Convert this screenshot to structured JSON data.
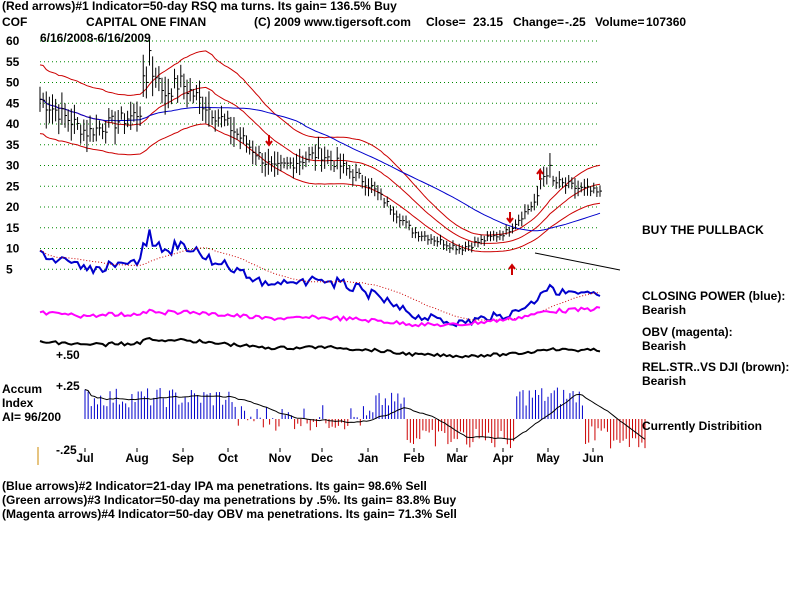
{
  "header": {
    "line1": "(Red arrows)#1 Indicator=50-day RSQ ma turns. Its gain= 136.5% Buy",
    "ticker": "COF",
    "company": "CAPITAL ONE FINAN",
    "copyright": "(C) 2009 www.tigersoft.com",
    "close_label": "Close=",
    "close_value": "23.15",
    "change_label": "Change=",
    "change_value": "-.25",
    "volume_label": "Volume=",
    "volume_value": "107360",
    "date_range": "6/16/2008-6/16/2009"
  },
  "side_labels": {
    "buy_pullback": "BUY THE PULLBACK",
    "closing_power": "CLOSING POWER (blue):",
    "closing_power_state": "Bearish",
    "obv": "OBV (magenta):",
    "obv_state": "Bearish",
    "relstr": "REL.STR..VS DJI (brown):",
    "relstr_state": "Bearish",
    "distribution": "Currently Distribition"
  },
  "accum": {
    "label1": "Accum",
    "label2": "Index",
    "label3": "AI= 96/200",
    "top_tick": "+.25",
    "bottom_tick": "-.25",
    "relstr_tick": "+.50"
  },
  "footer": {
    "line1": "(Blue arrows)#2 Indicator=21-day IPA ma penetrations. Its gain= 98.6% Sell",
    "line2": "(Green arrows)#3 Indicator=50-day ma penetrations by .5%. Its gain= 83.8% Buy",
    "line3": "(Magenta arrows)#4 Indicator=50-day OBV ma penetrations. Its gain= 71.3% Sell"
  },
  "colors": {
    "price_bars": "#000000",
    "bands": "#cc0000",
    "ma_blue": "#0000cc",
    "ma_red": "#cc0000",
    "closing_power": "#0000cc",
    "obv": "#ff00ff",
    "relstr": "#000000",
    "accum_pos": "#0000cc",
    "accum_neg": "#cc0000",
    "grid": "#008800"
  },
  "chart_data": {
    "type": "line",
    "xlabel": "",
    "ylabel": "",
    "ylim": [
      0,
      65
    ],
    "y_ticks": [
      5,
      10,
      15,
      20,
      25,
      30,
      35,
      40,
      45,
      50,
      55,
      60
    ],
    "x_ticks": [
      "Jul",
      "Aug",
      "Sep",
      "Oct",
      "Nov",
      "Dec",
      "Jan",
      "Feb",
      "Mar",
      "Apr",
      "May",
      "Jun"
    ],
    "grid": true,
    "categories": [
      "Jun",
      "Jul",
      "Aug",
      "Sep",
      "Oct",
      "Nov",
      "Dec",
      "Jan",
      "Feb",
      "Mar",
      "Apr",
      "May",
      "Jun"
    ],
    "series": [
      {
        "values": [
          46,
          38,
          42,
          50,
          40,
          29,
          33,
          26,
          14,
          10,
          14,
          26,
          23.15
        ]
      }
    ]
  }
}
